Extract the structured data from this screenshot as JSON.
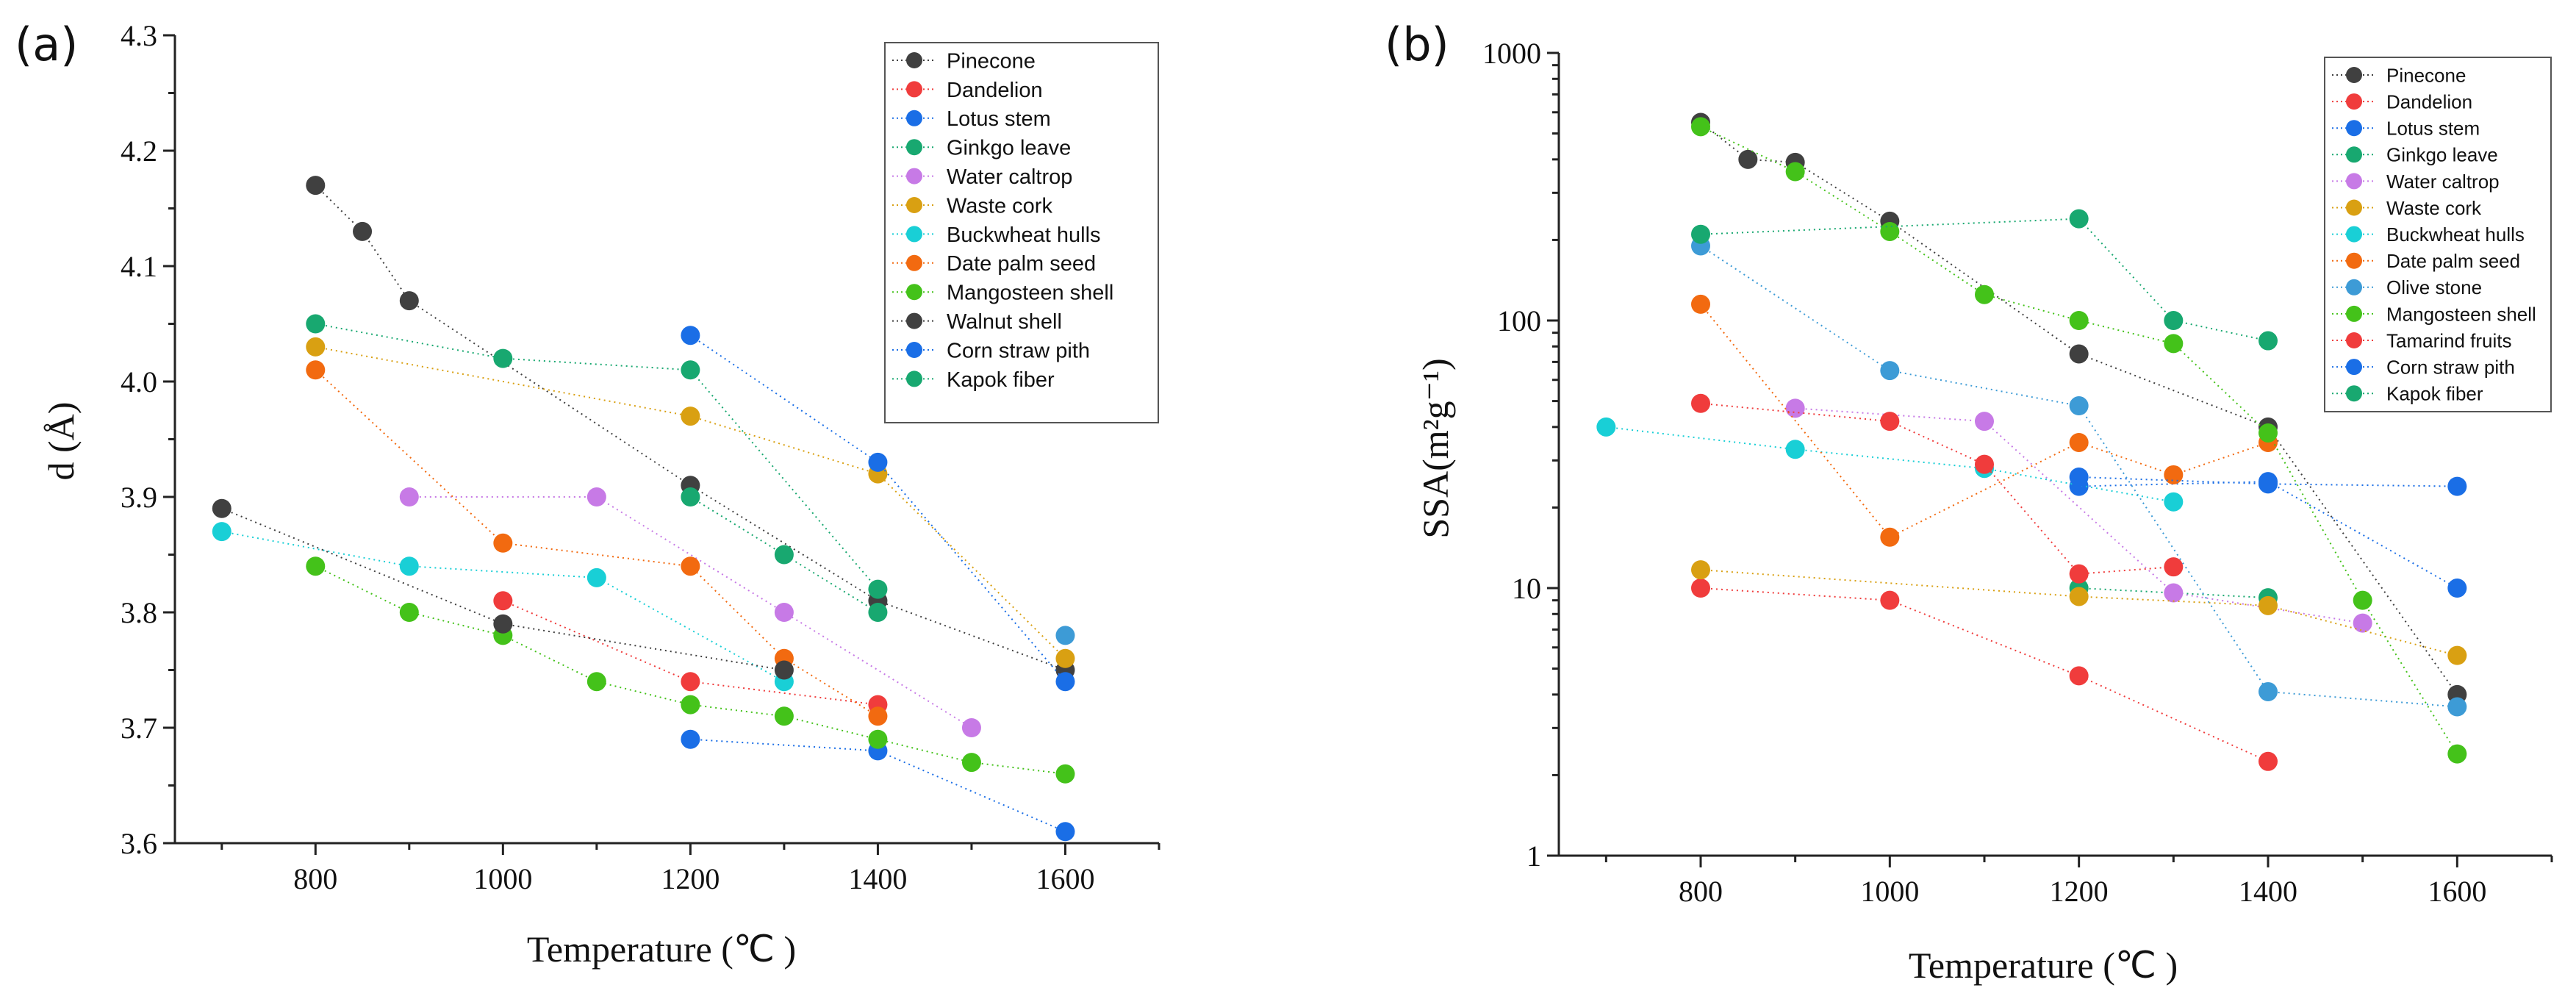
{
  "chart_data": [
    {
      "panel_label": "(a)",
      "type": "scatter",
      "xlabel": "Temperature (℃ )",
      "ylabel": "d (Å)",
      "xlim": [
        650,
        1700
      ],
      "ylim": [
        3.6,
        4.3
      ],
      "xticks": [
        800,
        1000,
        1200,
        1400,
        1600
      ],
      "yticks": [
        3.6,
        3.7,
        3.8,
        3.9,
        4.0,
        4.1,
        4.2,
        4.3
      ],
      "yscale": "linear",
      "legend": "top-right",
      "series": [
        {
          "name": "Pinecone",
          "color": "#404040",
          "x": [
            800,
            850,
            900,
            1200,
            1400,
            1600
          ],
          "y": [
            4.17,
            4.13,
            4.07,
            3.91,
            3.81,
            3.75
          ]
        },
        {
          "name": "Dandelion",
          "color": "#f03c3c",
          "x": [
            1000,
            1200,
            1400
          ],
          "y": [
            3.81,
            3.74,
            3.72
          ]
        },
        {
          "name": "Lotus stem",
          "color": "#1a6ee6",
          "x": [
            1200,
            1400,
            1600
          ],
          "y": [
            3.69,
            3.68,
            3.61
          ]
        },
        {
          "name": "Ginkgo leave",
          "color": "#18a870",
          "x": [
            1200,
            1300,
            1400
          ],
          "y": [
            3.9,
            3.85,
            3.8
          ]
        },
        {
          "name": "Water caltrop",
          "color": "#c77ae6",
          "x": [
            900,
            1100,
            1300,
            1500
          ],
          "y": [
            3.9,
            3.9,
            3.8,
            3.7
          ]
        },
        {
          "name": "Waste cork",
          "color": "#d9a012",
          "x": [
            800,
            1200,
            1400,
            1600
          ],
          "y": [
            4.03,
            3.97,
            3.92,
            3.76
          ]
        },
        {
          "name": "Buckwheat hulls",
          "color": "#19cfd6",
          "x": [
            700,
            900,
            1100,
            1300
          ],
          "y": [
            3.87,
            3.84,
            3.83,
            3.74
          ]
        },
        {
          "name": "Date palm seed",
          "color": "#f26a10",
          "x": [
            800,
            1000,
            1200,
            1300,
            1400
          ],
          "y": [
            4.01,
            3.86,
            3.84,
            3.76,
            3.71
          ]
        },
        {
          "name": "Mangosteen shell",
          "color": "#44c21a",
          "x": [
            800,
            900,
            1000,
            1100,
            1200,
            1300,
            1400,
            1500,
            1600
          ],
          "y": [
            3.84,
            3.8,
            3.78,
            3.74,
            3.72,
            3.71,
            3.69,
            3.67,
            3.66
          ]
        },
        {
          "name": "Walnut shell",
          "color": "#404040",
          "x": [
            700,
            1000,
            1300
          ],
          "y": [
            3.89,
            3.79,
            3.75
          ]
        },
        {
          "name": "Corn straw pith",
          "color": "#1a6ee6",
          "x": [
            1200,
            1400,
            1600
          ],
          "y": [
            4.04,
            3.93,
            3.74
          ]
        },
        {
          "name": "Kapok fiber",
          "color": "#18a870",
          "x": [
            800,
            1000,
            1200,
            1400
          ],
          "y": [
            4.05,
            4.02,
            4.01,
            3.82
          ]
        },
        {
          "name": "",
          "color": "#3d9bd6",
          "x": [
            1600
          ],
          "y": [
            3.78
          ]
        }
      ]
    },
    {
      "panel_label": "(b)",
      "type": "scatter",
      "xlabel": "Temperature (℃ )",
      "ylabel": "SSA(m²g⁻¹)",
      "xlim": [
        650,
        1700
      ],
      "ylim": [
        1,
        1000
      ],
      "xticks": [
        800,
        1000,
        1200,
        1400,
        1600
      ],
      "yticks": [
        1,
        10,
        100,
        1000
      ],
      "yscale": "log",
      "legend": "top-right",
      "series": [
        {
          "name": "Pinecone",
          "color": "#404040",
          "x": [
            800,
            850,
            900,
            1000,
            1200,
            1400,
            1600
          ],
          "y": [
            550,
            400,
            390,
            235,
            75,
            40,
            4
          ]
        },
        {
          "name": "Dandelion",
          "color": "#f03c3c",
          "x": [
            800,
            1000,
            1200,
            1400
          ],
          "y": [
            10,
            9,
            4.7,
            2.25
          ]
        },
        {
          "name": "Lotus stem",
          "color": "#1a6ee6",
          "x": [
            1200,
            1400,
            1600
          ],
          "y": [
            24,
            25,
            10
          ]
        },
        {
          "name": "Ginkgo leave",
          "color": "#18a870",
          "x": [
            1200,
            1400
          ],
          "y": [
            10,
            9.2
          ]
        },
        {
          "name": "Water caltrop",
          "color": "#c77ae6",
          "x": [
            900,
            1100,
            1300,
            1500
          ],
          "y": [
            47,
            42,
            9.6,
            7.4
          ]
        },
        {
          "name": "Waste cork",
          "color": "#d9a012",
          "x": [
            800,
            1200,
            1400,
            1600
          ],
          "y": [
            11.7,
            9.3,
            8.6,
            5.6
          ]
        },
        {
          "name": "Buckwheat hulls",
          "color": "#19cfd6",
          "x": [
            700,
            900,
            1100,
            1300
          ],
          "y": [
            40,
            33,
            28,
            21
          ]
        },
        {
          "name": "Date palm seed",
          "color": "#f26a10",
          "x": [
            800,
            1000,
            1200,
            1300,
            1400
          ],
          "y": [
            115,
            15.5,
            35,
            26.5,
            35
          ]
        },
        {
          "name": "Olive stone",
          "color": "#3d9bd6",
          "x": [
            800,
            1000,
            1200,
            1400,
            1600
          ],
          "y": [
            190,
            65,
            48,
            4.1,
            3.6
          ]
        },
        {
          "name": "Mangosteen shell",
          "color": "#44c21a",
          "x": [
            800,
            900,
            1000,
            1100,
            1200,
            1300,
            1400,
            1500,
            1600
          ],
          "y": [
            530,
            360,
            215,
            125,
            100,
            82,
            38,
            9,
            2.4
          ]
        },
        {
          "name": "Tamarind fruits",
          "color": "#f03c3c",
          "x": [
            800,
            1000,
            1100,
            1200,
            1300
          ],
          "y": [
            49,
            42,
            29,
            11.3,
            12
          ]
        },
        {
          "name": "Corn straw pith",
          "color": "#1a6ee6",
          "x": [
            1200,
            1400,
            1600
          ],
          "y": [
            26,
            24.5,
            24
          ]
        },
        {
          "name": "Kapok fiber",
          "color": "#18a870",
          "x": [
            800,
            1200,
            1300,
            1400
          ],
          "y": [
            210,
            240,
            100,
            84
          ]
        }
      ]
    }
  ]
}
